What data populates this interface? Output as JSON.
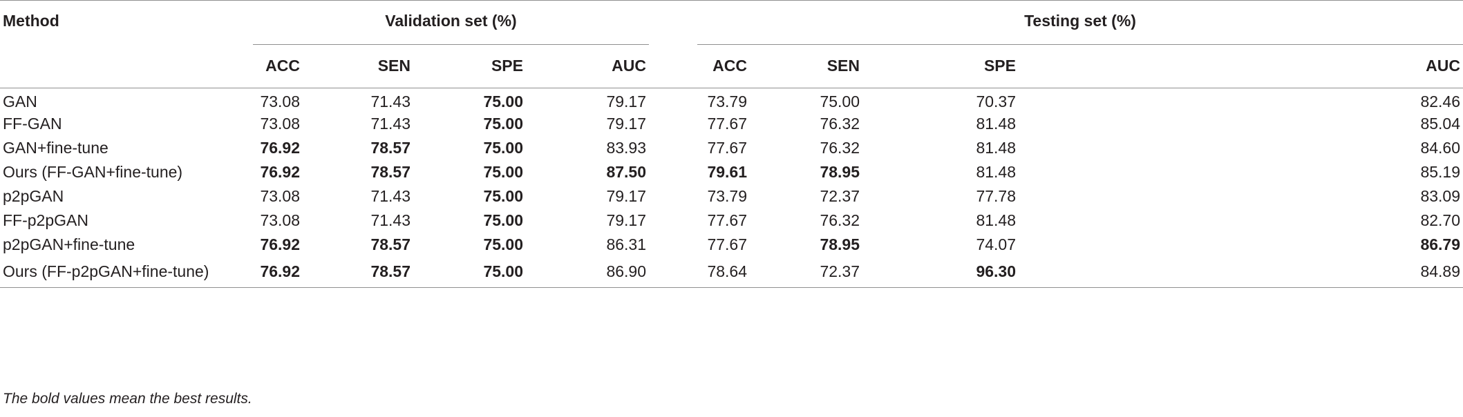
{
  "table": {
    "method_header": "Method",
    "groups": [
      {
        "label": "Validation set (%)"
      },
      {
        "label": "Testing set (%)"
      }
    ],
    "subheaders": [
      "ACC",
      "SEN",
      "SPE",
      "AUC",
      "ACC",
      "SEN",
      "SPE",
      "AUC"
    ],
    "rows": [
      {
        "method": "GAN",
        "values": [
          "73.08",
          "71.43",
          "75.00",
          "79.17",
          "73.79",
          "75.00",
          "70.37",
          "82.46"
        ],
        "bold": [
          false,
          false,
          true,
          false,
          false,
          false,
          false,
          false
        ]
      },
      {
        "method": "FF-GAN",
        "values": [
          "73.08",
          "71.43",
          "75.00",
          "79.17",
          "77.67",
          "76.32",
          "81.48",
          "85.04"
        ],
        "bold": [
          false,
          false,
          true,
          false,
          false,
          false,
          false,
          false
        ]
      },
      {
        "method": "GAN+fine-tune",
        "values": [
          "76.92",
          "78.57",
          "75.00",
          "83.93",
          "77.67",
          "76.32",
          "81.48",
          "84.60"
        ],
        "bold": [
          true,
          true,
          true,
          false,
          false,
          false,
          false,
          false
        ]
      },
      {
        "method": "Ours (FF-GAN+fine-tune)",
        "values": [
          "76.92",
          "78.57",
          "75.00",
          "87.50",
          "79.61",
          "78.95",
          "81.48",
          "85.19"
        ],
        "bold": [
          true,
          true,
          true,
          true,
          true,
          true,
          false,
          false
        ]
      },
      {
        "method": "p2pGAN",
        "values": [
          "73.08",
          "71.43",
          "75.00",
          "79.17",
          "73.79",
          "72.37",
          "77.78",
          "83.09"
        ],
        "bold": [
          false,
          false,
          true,
          false,
          false,
          false,
          false,
          false
        ]
      },
      {
        "method": "FF-p2pGAN",
        "values": [
          "73.08",
          "71.43",
          "75.00",
          "79.17",
          "77.67",
          "76.32",
          "81.48",
          "82.70"
        ],
        "bold": [
          false,
          false,
          true,
          false,
          false,
          false,
          false,
          false
        ]
      },
      {
        "method": "p2pGAN+fine-tune",
        "values": [
          "76.92",
          "78.57",
          "75.00",
          "86.31",
          "77.67",
          "78.95",
          "74.07",
          "86.79"
        ],
        "bold": [
          true,
          true,
          true,
          false,
          false,
          true,
          false,
          true
        ]
      },
      {
        "method": "Ours (FF-p2pGAN+fine-tune)",
        "values": [
          "76.92",
          "78.57",
          "75.00",
          "86.90",
          "78.64",
          "72.37",
          "96.30",
          "84.89"
        ],
        "bold": [
          true,
          true,
          true,
          false,
          false,
          false,
          true,
          false
        ]
      }
    ]
  },
  "footnote": "The bold values mean the best results."
}
